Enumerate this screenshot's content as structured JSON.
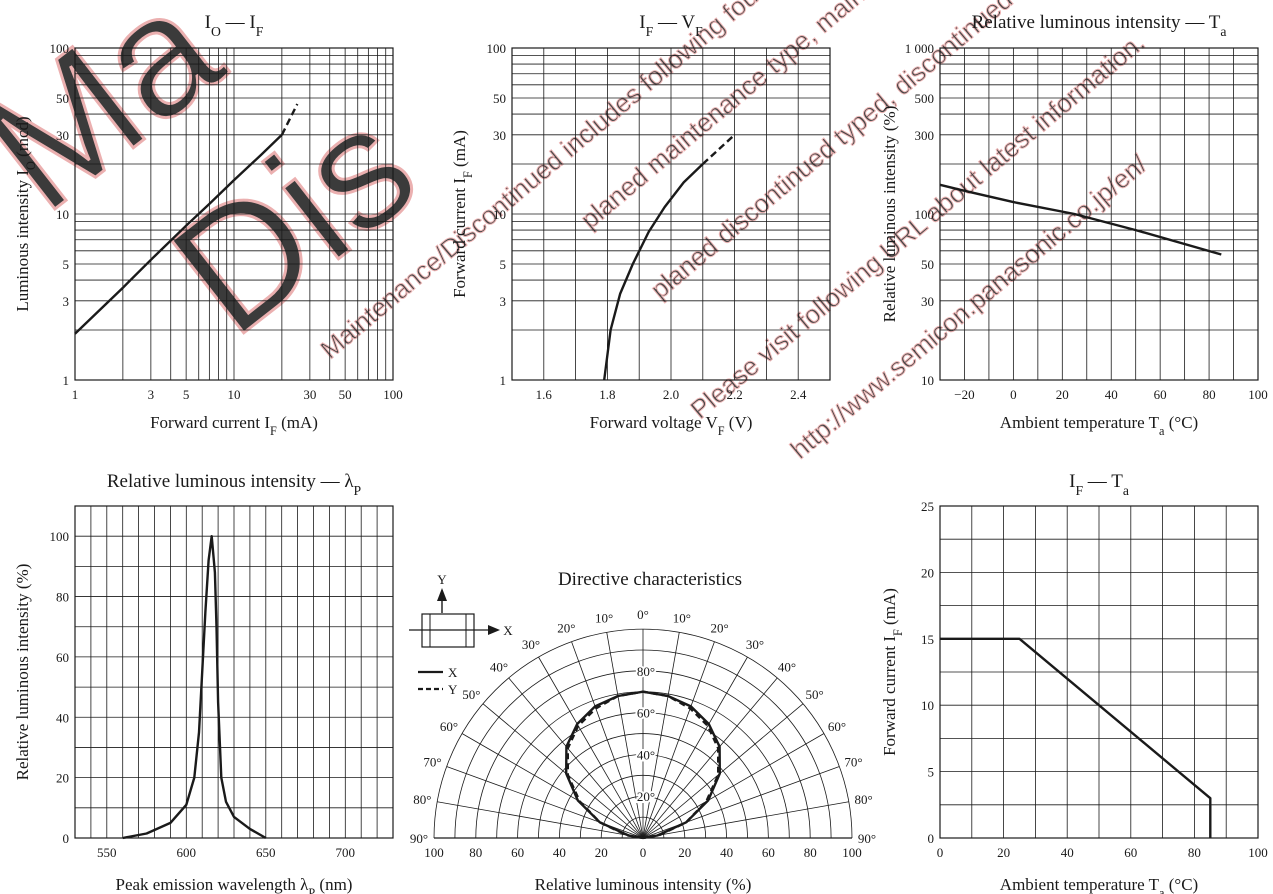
{
  "watermark": {
    "color": "#e8a3a3",
    "big_text": [
      "Ma",
      "Dis"
    ],
    "lines": [
      "Maintenance/Discontinued includes following four Product lifecycle stage",
      "planed maintenance type, maintenance type,",
      "planed discontinued typed, discontinued type",
      "Please visit following URL about latest information.",
      "http://www.semicon.panasonic.co.jp/en/"
    ]
  },
  "colors": {
    "ink": "#1a1a1a",
    "grid": "#1a1a1a",
    "background": "#ffffff"
  },
  "chart_data": [
    {
      "id": "io_if",
      "type": "line",
      "title": {
        "main": "I",
        "sub": "O",
        "sep": " — I",
        "sub2": "F"
      },
      "xlabel": {
        "main": "Forward current  I",
        "sub": "F",
        "tail": "  (mA)"
      },
      "ylabel": {
        "main": "Luminous intensity  I",
        "sub": "O",
        "tail": "  (mcd)"
      },
      "xscale": "log",
      "yscale": "log",
      "xlim": [
        1,
        100
      ],
      "ylim": [
        1,
        100
      ],
      "xticks": [
        1,
        3,
        5,
        10,
        30,
        50,
        100
      ],
      "xtick_labels": [
        "1",
        "3",
        "5",
        "10",
        "30",
        "50",
        "100"
      ],
      "yticks": [
        1,
        3,
        5,
        10,
        30,
        50,
        100
      ],
      "ytick_labels": [
        "1",
        "3",
        "5",
        "10",
        "30",
        "50",
        "100"
      ],
      "grid": true,
      "series": [
        {
          "style": "solid",
          "x": [
            1,
            2,
            3,
            5,
            7,
            10,
            15,
            20
          ],
          "y": [
            1.9,
            3.6,
            5.3,
            8.5,
            11.5,
            16,
            23,
            30
          ]
        },
        {
          "style": "dashed",
          "x": [
            20,
            25
          ],
          "y": [
            30,
            46
          ]
        }
      ]
    },
    {
      "id": "if_vf",
      "type": "line",
      "title": {
        "main": "I",
        "sub": "F",
        "sep": " — V",
        "sub2": "F"
      },
      "xlabel": {
        "main": "Forward voltage  V",
        "sub": "F",
        "tail": "  (V)"
      },
      "ylabel": {
        "main": "Forward current  I",
        "sub": "F",
        "tail": "  (mA)"
      },
      "xscale": "linear",
      "yscale": "log",
      "xlim": [
        1.5,
        2.5
      ],
      "ylim": [
        1,
        100
      ],
      "xticks": [
        1.6,
        1.8,
        2.0,
        2.2,
        2.4
      ],
      "xtick_labels": [
        "1.6",
        "1.8",
        "2.0",
        "2.2",
        "2.4"
      ],
      "yticks": [
        1,
        3,
        5,
        10,
        30,
        50,
        100
      ],
      "ytick_labels": [
        "1",
        "3",
        "5",
        "10",
        "30",
        "50",
        "100"
      ],
      "grid": true,
      "series": [
        {
          "style": "solid",
          "x": [
            1.79,
            1.81,
            1.84,
            1.88,
            1.93,
            1.98,
            2.04,
            2.1
          ],
          "y": [
            1,
            2,
            3.3,
            5,
            7.8,
            11,
            15.5,
            20
          ]
        },
        {
          "style": "dashed",
          "x": [
            2.1,
            2.2
          ],
          "y": [
            20,
            30
          ]
        }
      ]
    },
    {
      "id": "rel_ta",
      "type": "line",
      "title": {
        "main": "Relative luminous intensity",
        "sep": " — T",
        "sub2": "a"
      },
      "xlabel": {
        "main": "Ambient temperature  T",
        "sub": "a",
        "tail": "  (°C)"
      },
      "ylabel": {
        "main": "Relative luminous intensity  (%)"
      },
      "xscale": "linear",
      "yscale": "log",
      "xlim": [
        -30,
        100
      ],
      "ylim": [
        10,
        1000
      ],
      "xticks": [
        -20,
        0,
        20,
        40,
        60,
        80,
        100
      ],
      "xtick_labels": [
        "−20",
        "0",
        "20",
        "40",
        "60",
        "80",
        "100"
      ],
      "yticks": [
        10,
        30,
        50,
        100,
        300,
        500,
        1000
      ],
      "ytick_labels": [
        "10",
        "30",
        "50",
        "100",
        "300",
        "500",
        "1 000"
      ],
      "grid": true,
      "series": [
        {
          "style": "solid",
          "x": [
            -30,
            -20,
            0,
            25,
            50,
            85
          ],
          "y": [
            150,
            138,
            118,
            100,
            80,
            57
          ]
        }
      ]
    },
    {
      "id": "rel_lambda",
      "type": "line",
      "title": {
        "main": "Relative luminous intensity",
        "sep": " — λ",
        "sub2": "P"
      },
      "xlabel": {
        "main": "Peak emission wavelength  λ",
        "sub": "P",
        "tail": "  (nm)"
      },
      "ylabel": {
        "main": "Relative luminous intensity  (%)"
      },
      "xscale": "linear",
      "yscale": "linear",
      "xlim": [
        530,
        730
      ],
      "ylim": [
        0,
        110
      ],
      "xticks": [
        550,
        600,
        650,
        700
      ],
      "xtick_labels": [
        "550",
        "600",
        "650",
        "700"
      ],
      "yticks": [
        0,
        20,
        40,
        60,
        80,
        100
      ],
      "ytick_labels": [
        "0",
        "20",
        "40",
        "60",
        "80",
        "100"
      ],
      "grid": true,
      "series": [
        {
          "style": "solid",
          "x": [
            560,
            575,
            590,
            600,
            605,
            608,
            610,
            612,
            614,
            616,
            618,
            619,
            620,
            622,
            625,
            630,
            640,
            650
          ],
          "y": [
            0,
            1.5,
            5,
            11,
            20,
            35,
            55,
            75,
            92,
            100,
            88,
            70,
            45,
            20,
            12,
            7,
            3,
            0
          ]
        }
      ]
    },
    {
      "id": "if_ta",
      "type": "line",
      "title": {
        "main": "I",
        "sub": "F",
        "sep": " — T",
        "sub2": "a"
      },
      "xlabel": {
        "main": "Ambient temperature  T",
        "sub": "a",
        "tail": "  (°C)"
      },
      "ylabel": {
        "main": "Forward current  I",
        "sub": "F",
        "tail": "  (mA)"
      },
      "xscale": "linear",
      "yscale": "linear",
      "xlim": [
        0,
        100
      ],
      "ylim": [
        0,
        25
      ],
      "xticks": [
        0,
        20,
        40,
        60,
        80,
        100
      ],
      "xtick_labels": [
        "0",
        "20",
        "40",
        "60",
        "80",
        "100"
      ],
      "yticks": [
        0,
        5,
        10,
        15,
        20,
        25
      ],
      "ytick_labels": [
        "0",
        "5",
        "10",
        "15",
        "20",
        "25"
      ],
      "grid": true,
      "series": [
        {
          "style": "solid",
          "x": [
            0,
            25,
            85,
            85
          ],
          "y": [
            15,
            15,
            3,
            0
          ]
        }
      ]
    },
    {
      "id": "directive",
      "type": "polar",
      "title": "Directive characteristics",
      "xlabel": "Relative luminous intensity  (%)",
      "radial_ticks": [
        20,
        40,
        60,
        80
      ],
      "radial_tick_labels": [
        "20°",
        "40°",
        "60°",
        "80°"
      ],
      "angle_labels": [
        "0°",
        "10°",
        "20°",
        "30°",
        "40°",
        "50°",
        "60°",
        "70°",
        "80°",
        "90°"
      ],
      "bottom_labels": [
        "100",
        "80",
        "60",
        "40",
        "20",
        "0",
        "20",
        "40",
        "60",
        "80",
        "100"
      ],
      "legend": {
        "labels": [
          "X",
          "Y"
        ],
        "axis_x": "X",
        "axis_y": "Y"
      },
      "series": [
        {
          "name": "X",
          "style": "solid",
          "angles": [
            0,
            10,
            20,
            30,
            40,
            50,
            60,
            70,
            80,
            90
          ],
          "values": [
            70,
            69,
            67,
            63,
            57,
            48,
            36,
            22,
            7,
            0
          ]
        },
        {
          "name": "Y",
          "style": "dashed",
          "angles": [
            0,
            10,
            20,
            30,
            40,
            50,
            60,
            70,
            80,
            90
          ],
          "values": [
            70,
            69,
            66,
            62,
            56,
            47,
            35,
            22,
            8,
            0
          ]
        }
      ]
    }
  ]
}
